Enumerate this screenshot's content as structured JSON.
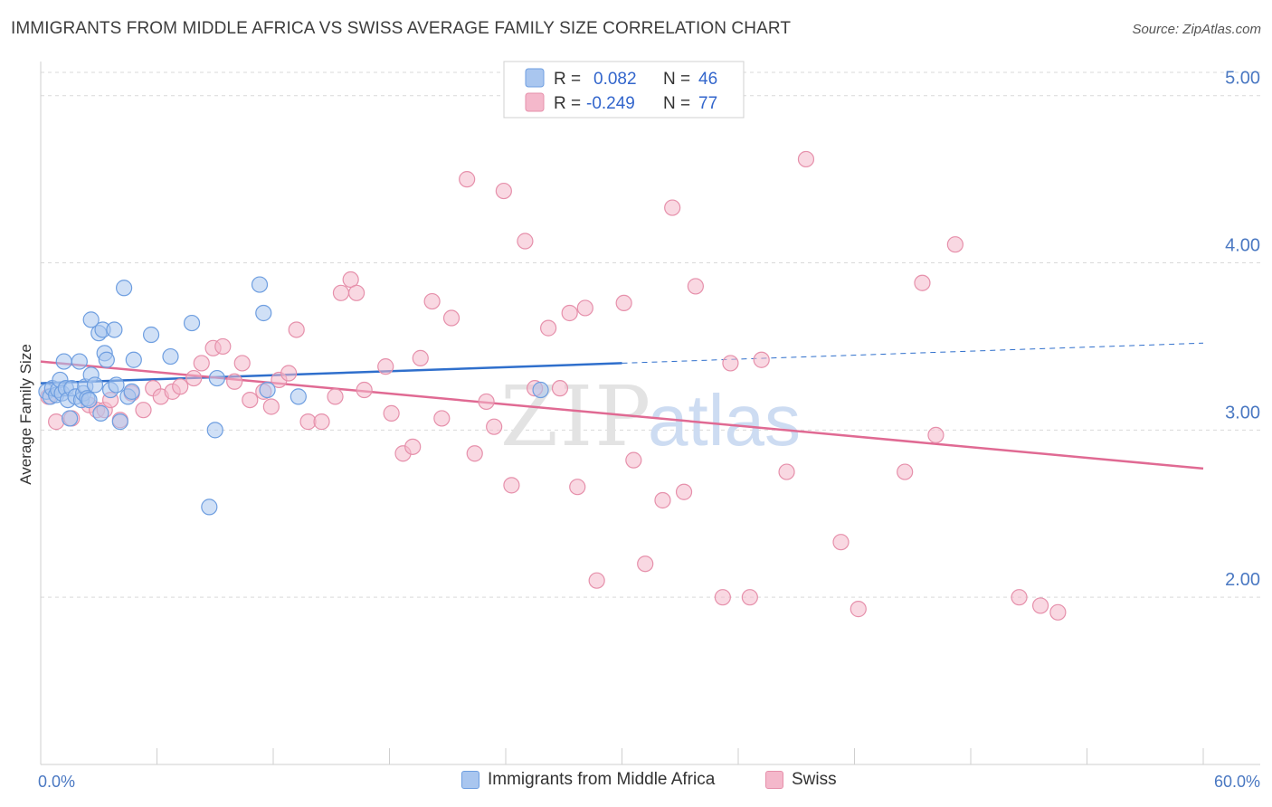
{
  "header": {
    "title": "IMMIGRANTS FROM MIDDLE AFRICA VS SWISS AVERAGE FAMILY SIZE CORRELATION CHART",
    "source": "Source: ZipAtlas.com"
  },
  "watermark": {
    "part1": "ZIP",
    "part2": "atlas"
  },
  "legend": {
    "rows": [
      {
        "r_label": "R =",
        "r_value": "0.082",
        "n_label": "N =",
        "n_value": "46"
      },
      {
        "r_label": "R =",
        "r_value": "-0.249",
        "n_label": "N =",
        "n_value": "77"
      }
    ]
  },
  "bottom_legend": {
    "items": [
      {
        "label": "Immigrants from Middle Africa"
      },
      {
        "label": "Swiss"
      }
    ]
  },
  "colors": {
    "blue_fill": "#a9c6ef",
    "blue_stroke": "#6e9ee0",
    "blue_line": "#2f6fcc",
    "pink_fill": "#f4b8cb",
    "pink_stroke": "#e690ab",
    "pink_line": "#e06a93",
    "grid": "#d9d9d9",
    "tick_label": "#4a78c2"
  },
  "chart_data": {
    "type": "scatter",
    "title": "IMMIGRANTS FROM MIDDLE AFRICA VS SWISS AVERAGE FAMILY SIZE CORRELATION CHART",
    "xlabel": "",
    "ylabel": "Average Family Size",
    "xlim": [
      0,
      60
    ],
    "ylim": [
      1.0,
      5.15
    ],
    "x_tick_labels": [
      "0.0%",
      "60.0%"
    ],
    "y_ticks": [
      2.0,
      3.0,
      4.0,
      5.0
    ],
    "y_tick_labels": [
      "2.00",
      "3.00",
      "4.00",
      "5.00"
    ],
    "grid": true,
    "legend_position": "top-center",
    "series": [
      {
        "name": "Immigrants from Middle Africa",
        "r": 0.082,
        "n": 46,
        "trend": {
          "x": [
            0,
            30
          ],
          "y": [
            3.28,
            3.4
          ],
          "dashed_to": [
            60,
            3.52
          ]
        },
        "points": [
          [
            0.3,
            3.23
          ],
          [
            0.5,
            3.2
          ],
          [
            0.6,
            3.25
          ],
          [
            0.8,
            3.21
          ],
          [
            0.9,
            3.24
          ],
          [
            1.0,
            3.3
          ],
          [
            1.1,
            3.22
          ],
          [
            1.2,
            3.41
          ],
          [
            1.3,
            3.25
          ],
          [
            1.4,
            3.18
          ],
          [
            1.5,
            3.07
          ],
          [
            1.6,
            3.25
          ],
          [
            1.8,
            3.2
          ],
          [
            2.0,
            3.41
          ],
          [
            2.1,
            3.18
          ],
          [
            2.2,
            3.22
          ],
          [
            2.3,
            3.26
          ],
          [
            2.4,
            3.19
          ],
          [
            2.5,
            3.18
          ],
          [
            2.6,
            3.33
          ],
          [
            2.6,
            3.66
          ],
          [
            2.8,
            3.27
          ],
          [
            3.0,
            3.58
          ],
          [
            3.1,
            3.1
          ],
          [
            3.2,
            3.6
          ],
          [
            3.3,
            3.46
          ],
          [
            3.4,
            3.42
          ],
          [
            3.6,
            3.24
          ],
          [
            3.8,
            3.6
          ],
          [
            3.9,
            3.27
          ],
          [
            4.1,
            3.05
          ],
          [
            4.3,
            3.85
          ],
          [
            4.5,
            3.2
          ],
          [
            4.7,
            3.23
          ],
          [
            4.8,
            3.42
          ],
          [
            5.7,
            3.57
          ],
          [
            6.7,
            3.44
          ],
          [
            7.8,
            3.64
          ],
          [
            8.7,
            2.54
          ],
          [
            9.0,
            3.0
          ],
          [
            9.1,
            3.31
          ],
          [
            11.3,
            3.87
          ],
          [
            11.5,
            3.7
          ],
          [
            11.7,
            3.24
          ],
          [
            13.3,
            3.2
          ],
          [
            25.8,
            3.24
          ]
        ]
      },
      {
        "name": "Swiss",
        "r": -0.249,
        "n": 77,
        "trend": {
          "x": [
            0,
            60
          ],
          "y": [
            3.41,
            2.77
          ]
        },
        "points": [
          [
            0.4,
            3.2
          ],
          [
            0.8,
            3.05
          ],
          [
            1.6,
            3.07
          ],
          [
            2.5,
            3.15
          ],
          [
            2.9,
            3.12
          ],
          [
            3.3,
            3.12
          ],
          [
            3.6,
            3.18
          ],
          [
            4.1,
            3.06
          ],
          [
            4.7,
            3.22
          ],
          [
            5.3,
            3.12
          ],
          [
            5.8,
            3.25
          ],
          [
            6.2,
            3.2
          ],
          [
            6.8,
            3.23
          ],
          [
            7.2,
            3.26
          ],
          [
            7.9,
            3.31
          ],
          [
            8.3,
            3.4
          ],
          [
            8.9,
            3.49
          ],
          [
            9.4,
            3.5
          ],
          [
            10.0,
            3.29
          ],
          [
            10.4,
            3.4
          ],
          [
            10.8,
            3.18
          ],
          [
            11.5,
            3.23
          ],
          [
            11.9,
            3.14
          ],
          [
            12.3,
            3.3
          ],
          [
            12.8,
            3.34
          ],
          [
            13.2,
            3.6
          ],
          [
            13.8,
            3.05
          ],
          [
            14.5,
            3.05
          ],
          [
            15.2,
            3.2
          ],
          [
            15.5,
            3.82
          ],
          [
            16.0,
            3.9
          ],
          [
            16.3,
            3.82
          ],
          [
            16.7,
            3.24
          ],
          [
            17.8,
            3.38
          ],
          [
            18.1,
            3.1
          ],
          [
            18.7,
            2.86
          ],
          [
            19.2,
            2.9
          ],
          [
            19.6,
            3.43
          ],
          [
            20.2,
            3.77
          ],
          [
            20.7,
            3.07
          ],
          [
            21.2,
            3.67
          ],
          [
            22.0,
            4.5
          ],
          [
            22.4,
            2.86
          ],
          [
            23.0,
            3.17
          ],
          [
            23.4,
            3.02
          ],
          [
            23.9,
            4.43
          ],
          [
            24.3,
            2.67
          ],
          [
            25.0,
            4.13
          ],
          [
            25.5,
            3.25
          ],
          [
            26.2,
            3.61
          ],
          [
            26.8,
            3.25
          ],
          [
            27.3,
            3.7
          ],
          [
            27.7,
            2.66
          ],
          [
            28.1,
            3.73
          ],
          [
            28.7,
            2.1
          ],
          [
            30.1,
            3.76
          ],
          [
            30.6,
            2.82
          ],
          [
            31.2,
            2.2
          ],
          [
            32.1,
            2.58
          ],
          [
            32.6,
            4.33
          ],
          [
            33.2,
            2.63
          ],
          [
            33.8,
            3.86
          ],
          [
            35.2,
            2.0
          ],
          [
            35.6,
            3.4
          ],
          [
            36.6,
            2.0
          ],
          [
            37.2,
            3.42
          ],
          [
            38.5,
            2.75
          ],
          [
            39.5,
            4.62
          ],
          [
            41.3,
            2.33
          ],
          [
            42.2,
            1.93
          ],
          [
            44.6,
            2.75
          ],
          [
            45.5,
            3.88
          ],
          [
            46.2,
            2.97
          ],
          [
            47.2,
            4.11
          ],
          [
            50.5,
            2.0
          ],
          [
            51.6,
            1.95
          ],
          [
            52.5,
            1.91
          ]
        ]
      }
    ]
  }
}
